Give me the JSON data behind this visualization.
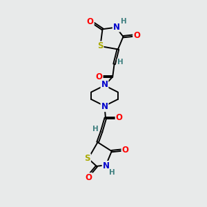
{
  "background_color": "#e8eaea",
  "bond_color": "#000000",
  "atom_colors": {
    "O": "#ff0000",
    "N": "#0000cc",
    "S": "#aaaa00",
    "H": "#408080",
    "C": "#000000"
  },
  "font_size_atoms": 8.5,
  "font_size_H": 7.5,
  "lw": 1.4,
  "doffset": 0.055
}
